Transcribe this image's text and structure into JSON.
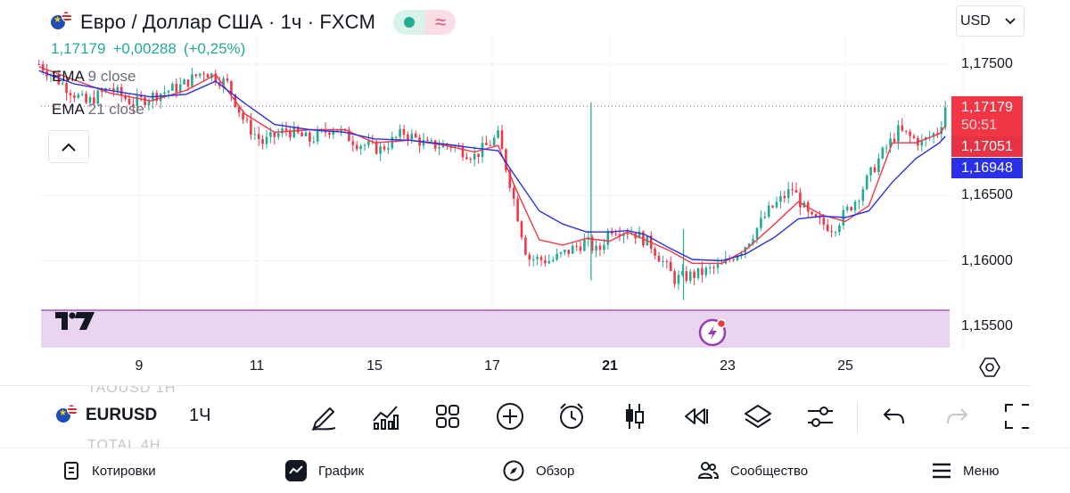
{
  "header": {
    "title": "Евро / Доллар США · 1ч · FXCM",
    "flag_icon": "eur-usd-flag-icon",
    "market_open_icon": "market-open-dot",
    "replay_icon": "wave-icon",
    "price": "1,17179",
    "change": "+0,00288",
    "change_pct": "(+0,25%)"
  },
  "currency_select": {
    "value": "USD"
  },
  "indicators": [
    {
      "name": "EMA",
      "params": "9 close"
    },
    {
      "name": "EMA",
      "params": "21 close"
    }
  ],
  "price_tags": {
    "last": "1,17179",
    "countdown": "50:51",
    "ema9": "1,17051",
    "ema21": "1,16948"
  },
  "chart_data": {
    "type": "line",
    "symbol": "EURUSD",
    "interval": "1H",
    "y_ticks": [
      "1,17500",
      "1,16500",
      "1,16000",
      "1,15500"
    ],
    "x_ticks": [
      "9",
      "11",
      "15",
      "17",
      "21",
      "23",
      "25"
    ],
    "ylim": [
      1.1551,
      1.179
    ],
    "series": [
      {
        "name": "EMA 9 close",
        "color": "#f23645",
        "points": [
          [
            7.3,
            1.1748
          ],
          [
            7.9,
            1.1738
          ],
          [
            8.5,
            1.1728
          ],
          [
            9.2,
            1.1722
          ],
          [
            9.8,
            1.173
          ],
          [
            10.3,
            1.1742
          ],
          [
            10.8,
            1.1712
          ],
          [
            11.3,
            1.1698
          ],
          [
            11.9,
            1.17
          ],
          [
            12.5,
            1.17
          ],
          [
            13.0,
            1.169
          ],
          [
            13.6,
            1.1692
          ],
          [
            14.2,
            1.1688
          ],
          [
            14.7,
            1.1683
          ],
          [
            15.1,
            1.1688
          ],
          [
            15.4,
            1.1655
          ],
          [
            15.8,
            1.1616
          ],
          [
            16.2,
            1.1612
          ],
          [
            16.6,
            1.1617
          ],
          [
            17.0,
            1.1615
          ],
          [
            17.3,
            1.1622
          ],
          [
            17.6,
            1.1616
          ],
          [
            18.0,
            1.1608
          ],
          [
            18.4,
            1.1598
          ],
          [
            18.9,
            1.1598
          ],
          [
            19.3,
            1.1608
          ],
          [
            19.8,
            1.1628
          ],
          [
            20.2,
            1.1645
          ],
          [
            20.6,
            1.1635
          ],
          [
            21.0,
            1.163
          ],
          [
            21.4,
            1.1642
          ],
          [
            21.8,
            1.169
          ],
          [
            22.2,
            1.169
          ],
          [
            22.6,
            1.1697
          ],
          [
            22.7,
            1.1703
          ]
        ]
      },
      {
        "name": "EMA 21 close",
        "color": "#2930e8",
        "points": [
          [
            7.3,
            1.1745
          ],
          [
            7.9,
            1.1735
          ],
          [
            8.5,
            1.173
          ],
          [
            9.2,
            1.1725
          ],
          [
            9.8,
            1.1727
          ],
          [
            10.3,
            1.1737
          ],
          [
            10.8,
            1.172
          ],
          [
            11.3,
            1.1704
          ],
          [
            11.9,
            1.17
          ],
          [
            12.5,
            1.1698
          ],
          [
            13.0,
            1.1693
          ],
          [
            13.6,
            1.1692
          ],
          [
            14.2,
            1.1689
          ],
          [
            14.7,
            1.1686
          ],
          [
            15.1,
            1.1684
          ],
          [
            15.4,
            1.1664
          ],
          [
            15.8,
            1.1638
          ],
          [
            16.2,
            1.1628
          ],
          [
            16.6,
            1.1622
          ],
          [
            17.0,
            1.1622
          ],
          [
            17.3,
            1.1623
          ],
          [
            17.6,
            1.162
          ],
          [
            18.0,
            1.161
          ],
          [
            18.4,
            1.1601
          ],
          [
            18.9,
            1.16
          ],
          [
            19.3,
            1.1605
          ],
          [
            19.8,
            1.1618
          ],
          [
            20.2,
            1.1632
          ],
          [
            20.6,
            1.1634
          ],
          [
            21.0,
            1.1633
          ],
          [
            21.4,
            1.1638
          ],
          [
            21.8,
            1.166
          ],
          [
            22.2,
            1.1678
          ],
          [
            22.6,
            1.169
          ],
          [
            22.7,
            1.1695
          ]
        ]
      },
      {
        "name": "Close",
        "color": "#22ab94",
        "points": [
          [
            7.3,
            1.175
          ],
          [
            7.7,
            1.1735
          ],
          [
            8.1,
            1.172
          ],
          [
            8.5,
            1.1732
          ],
          [
            8.9,
            1.172
          ],
          [
            9.3,
            1.1727
          ],
          [
            9.7,
            1.1733
          ],
          [
            10.1,
            1.1745
          ],
          [
            10.5,
            1.1735
          ],
          [
            10.8,
            1.1705
          ],
          [
            11.1,
            1.169
          ],
          [
            11.5,
            1.17
          ],
          [
            11.9,
            1.1692
          ],
          [
            12.3,
            1.1702
          ],
          [
            12.7,
            1.169
          ],
          [
            13.1,
            1.1685
          ],
          [
            13.5,
            1.1698
          ],
          [
            13.9,
            1.1688
          ],
          [
            14.3,
            1.1688
          ],
          [
            14.7,
            1.168
          ],
          [
            15.1,
            1.1695
          ],
          [
            15.3,
            1.166
          ],
          [
            15.6,
            1.1602
          ],
          [
            16.0,
            1.16
          ],
          [
            16.4,
            1.161
          ],
          [
            16.6,
            1.1615
          ],
          [
            16.8,
            1.1606
          ],
          [
            17.0,
            1.1625
          ],
          [
            17.4,
            1.1622
          ],
          [
            17.7,
            1.1612
          ],
          [
            18.1,
            1.1586
          ],
          [
            18.5,
            1.159
          ],
          [
            18.9,
            1.1596
          ],
          [
            19.3,
            1.1612
          ],
          [
            19.7,
            1.1638
          ],
          [
            20.1,
            1.1655
          ],
          [
            20.4,
            1.1632
          ],
          [
            20.8,
            1.1625
          ],
          [
            21.2,
            1.1648
          ],
          [
            21.6,
            1.168
          ],
          [
            21.9,
            1.1699
          ],
          [
            22.3,
            1.169
          ],
          [
            22.6,
            1.17
          ],
          [
            22.7,
            1.1718
          ]
        ]
      }
    ],
    "grid": true,
    "grid_lines": 4
  },
  "toolbar": {
    "ghost_top": "TAOUSD   1Н",
    "ghost_bottom": "TOTAL   4Н",
    "ticker": "EURUSD",
    "interval": "1Ч",
    "icons": [
      "drawing-pen-icon",
      "indicators-icon",
      "templates-grid-icon",
      "add-plus-icon",
      "alert-clock-icon",
      "candles-icon",
      "replay-rewind-icon",
      "layers-icon",
      "settings-sliders-icon",
      "undo-icon",
      "redo-icon",
      "fullscreen-icon"
    ]
  },
  "bottom_nav": [
    {
      "label": "Котировки",
      "icon": "watchlist-icon"
    },
    {
      "label": "График",
      "icon": "chart-icon"
    },
    {
      "label": "Обзор",
      "icon": "compass-icon"
    },
    {
      "label": "Сообщество",
      "icon": "community-icon"
    },
    {
      "label": "Меню",
      "icon": "menu-icon"
    }
  ]
}
